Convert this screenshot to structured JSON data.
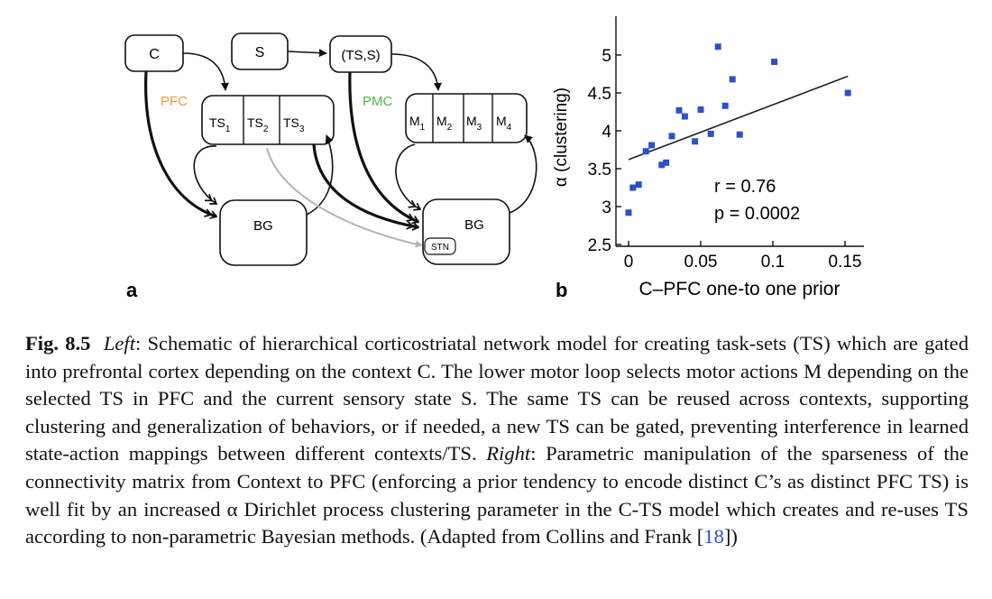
{
  "panel_a": {
    "label": "a",
    "nodes": {
      "c": "C",
      "s": "S",
      "ts_s": "(TS,S)",
      "pfc": "PFC",
      "pmc": "PMC",
      "bg_left": "BG",
      "bg_right": "BG",
      "stn": "STN"
    },
    "ts_cells": [
      {
        "main": "TS",
        "sub": "1"
      },
      {
        "main": "TS",
        "sub": "2"
      },
      {
        "main": "TS",
        "sub": "3"
      }
    ],
    "m_cells": [
      {
        "main": "M",
        "sub": "1"
      },
      {
        "main": "M",
        "sub": "2"
      },
      {
        "main": "M",
        "sub": "3"
      },
      {
        "main": "M",
        "sub": "4"
      }
    ],
    "colors": {
      "pfc": "#f39a3c",
      "pmc": "#54b848",
      "stn_path": "#b3b3b3",
      "line": "#111111"
    }
  },
  "panel_b": {
    "label": "b",
    "stats": {
      "r": "r = 0.76",
      "p": "p = 0.0002"
    },
    "marker_color": "#2b50c8"
  },
  "chart_data": {
    "type": "scatter",
    "xlabel": "C–PFC one-to one prior",
    "ylabel": "α  (clustering)",
    "xlim": [
      -0.005,
      0.155
    ],
    "ylim": [
      2.5,
      5.2
    ],
    "xticks": [
      0,
      0.05,
      0.1,
      0.15
    ],
    "xtick_labels": [
      "0",
      "0.05",
      "0.1",
      "0.15"
    ],
    "yticks": [
      2.5,
      3,
      3.5,
      4,
      4.5,
      5
    ],
    "ytick_labels": [
      "2.5",
      "3",
      "3.5",
      "4",
      "4.5",
      "5"
    ],
    "points": [
      {
        "x": 0.0,
        "y": 2.92
      },
      {
        "x": 0.003,
        "y": 3.25
      },
      {
        "x": 0.007,
        "y": 3.29
      },
      {
        "x": 0.012,
        "y": 3.73
      },
      {
        "x": 0.016,
        "y": 3.81
      },
      {
        "x": 0.023,
        "y": 3.55
      },
      {
        "x": 0.026,
        "y": 3.58
      },
      {
        "x": 0.03,
        "y": 3.93
      },
      {
        "x": 0.035,
        "y": 4.27
      },
      {
        "x": 0.039,
        "y": 4.19
      },
      {
        "x": 0.046,
        "y": 3.86
      },
      {
        "x": 0.05,
        "y": 4.28
      },
      {
        "x": 0.057,
        "y": 3.96
      },
      {
        "x": 0.062,
        "y": 5.11
      },
      {
        "x": 0.067,
        "y": 4.33
      },
      {
        "x": 0.072,
        "y": 4.68
      },
      {
        "x": 0.077,
        "y": 3.95
      },
      {
        "x": 0.101,
        "y": 4.91
      },
      {
        "x": 0.152,
        "y": 4.5
      }
    ],
    "fit_line": [
      {
        "x": 0.0,
        "y": 3.62
      },
      {
        "x": 0.152,
        "y": 4.72
      }
    ],
    "annotations": [
      "r = 0.76",
      "p = 0.0002"
    ],
    "grid": false,
    "legend": "none"
  },
  "caption": {
    "label": "Fig. 8.5",
    "left_word": "Left",
    "text1": ": Schematic of hierarchical corticostriatal network model for creating task-sets (TS) which are gated into prefrontal cortex depending on the context C. The lower motor loop selects motor actions M depending on the selected TS in PFC and the current sensory state S. The same TS can be reused across contexts, supporting clustering and generalization of behaviors, or if needed, a new TS can be gated, preventing interference in learned state-action mappings between different contexts/TS. ",
    "right_word": "Right",
    "text2": ": Parametric manipulation of the sparseness of the connectivity matrix from Context to PFC (enforcing a prior tendency to encode distinct C’s as distinct PFC TS) is well fit by an increased α Dirichlet process clustering parameter in the C-TS model which creates and re-uses TS according to non-parametric Bayesian methods. (Adapted from Collins and Frank [",
    "ref": "18",
    "text3": "])"
  }
}
